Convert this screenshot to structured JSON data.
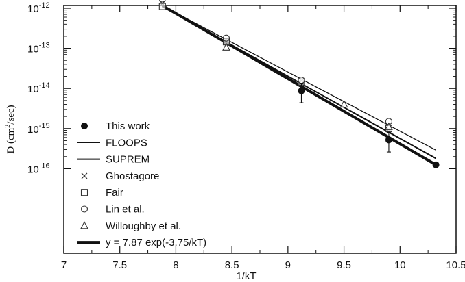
{
  "chart_data": {
    "type": "scatter",
    "title": "",
    "xlabel": "1/kT",
    "ylabel": "D (cm²/sec)",
    "ylabel_parts": {
      "prefix": "D (cm",
      "sup": "2",
      "suffix": "/sec)"
    },
    "xlim": [
      7,
      10.5
    ],
    "ylim": [
      1e-16,
      5e-12
    ],
    "yscale": "log",
    "xticks": [
      7,
      7.5,
      8,
      8.5,
      9,
      9.5,
      10,
      10.5
    ],
    "xtick_labels": [
      "7",
      "7.5",
      "8",
      "8.5",
      "9",
      "9.5",
      "10",
      "10.5"
    ],
    "yticks": [
      {
        "value": 1e-12,
        "base": "10",
        "exp": "-12"
      },
      {
        "value": 1e-13,
        "base": "10",
        "exp": "-13"
      },
      {
        "value": 1e-14,
        "base": "10",
        "exp": "-14"
      },
      {
        "value": 1e-15,
        "base": "10",
        "exp": "-15"
      },
      {
        "value": 1e-16,
        "base": "10",
        "exp": "-16"
      }
    ],
    "legend_placement": "left",
    "series": [
      {
        "name": "This work",
        "kind": "scatter",
        "marker": "filled-circle",
        "points": [
          {
            "x": 9.12,
            "y": 8.7e-15,
            "err_low": 4.4e-15,
            "err_high": 1.35e-14
          },
          {
            "x": 9.9,
            "y": 5.2e-16,
            "err_low": 2.6e-16,
            "err_high": 8e-16
          },
          {
            "x": 10.32,
            "y": 1.25e-16
          }
        ]
      },
      {
        "name": "FLOOPS",
        "kind": "line",
        "style": "thin",
        "points": [
          {
            "x": 7.88,
            "y": 1.15e-12
          },
          {
            "x": 10.32,
            "y": 2.9e-16
          }
        ]
      },
      {
        "name": "SUPREM",
        "kind": "line",
        "style": "medium",
        "points": [
          {
            "x": 7.88,
            "y": 1.1e-12
          },
          {
            "x": 10.32,
            "y": 1.8e-16
          }
        ]
      },
      {
        "name": "Ghostagore",
        "kind": "scatter",
        "marker": "x",
        "points": [
          {
            "x": 7.88,
            "y": 1.3e-12
          },
          {
            "x": 8.45,
            "y": 1.45e-13
          },
          {
            "x": 9.12,
            "y": 1.55e-14
          },
          {
            "x": 9.9,
            "y": 9.5e-16
          }
        ]
      },
      {
        "name": "Fair",
        "kind": "scatter",
        "marker": "square",
        "points": [
          {
            "x": 7.88,
            "y": 1.1e-12
          },
          {
            "x": 8.45,
            "y": 1.45e-13
          },
          {
            "x": 9.12,
            "y": 1.45e-14
          },
          {
            "x": 9.9,
            "y": 1e-15
          }
        ]
      },
      {
        "name": "Lin et al.",
        "kind": "scatter",
        "marker": "circle",
        "points": [
          {
            "x": 7.88,
            "y": 1.7e-12
          },
          {
            "x": 8.45,
            "y": 1.8e-13
          },
          {
            "x": 9.12,
            "y": 1.6e-14
          },
          {
            "x": 9.9,
            "y": 1.5e-15
          }
        ]
      },
      {
        "name": "Willoughby et al.",
        "kind": "scatter",
        "marker": "triangle",
        "points": [
          {
            "x": 8.45,
            "y": 1.05e-13
          },
          {
            "x": 9.5,
            "y": 4e-15
          },
          {
            "x": 9.9,
            "y": 1.1e-15
          }
        ]
      },
      {
        "name": "y = 7.87 exp(-3.75/kT)",
        "kind": "line",
        "style": "thick",
        "points": [
          {
            "x": 7.88,
            "y": 1.16e-12
          },
          {
            "x": 10.32,
            "y": 1.25e-16
          }
        ]
      }
    ]
  }
}
